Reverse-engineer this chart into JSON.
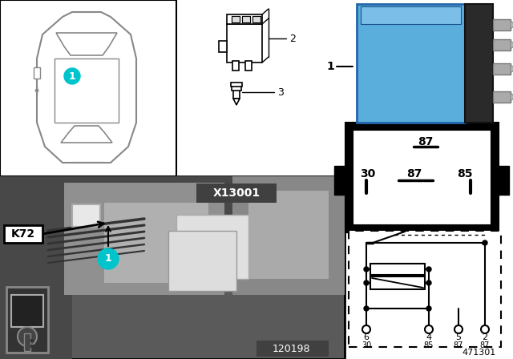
{
  "bg_color": "#ffffff",
  "cyan": "#00c4cc",
  "relay_blue": "#5aaedb",
  "photo_bg_dark": "#606060",
  "photo_bg_mid": "#808080",
  "photo_bg_light": "#a0a0a0",
  "doc_number": "471301",
  "photo_number": "120198",
  "connector_label": "X13001",
  "relay_loc_label": "K72",
  "schematic_pins_top": [
    "6",
    "4",
    "5",
    "2"
  ],
  "schematic_pins_bot": [
    "30",
    "85",
    "87",
    "87"
  ],
  "relay_diag_top": "87",
  "relay_diag_left": "30",
  "relay_diag_center": "87",
  "relay_diag_right": "85",
  "item1": "1",
  "item2": "2",
  "item3": "3"
}
